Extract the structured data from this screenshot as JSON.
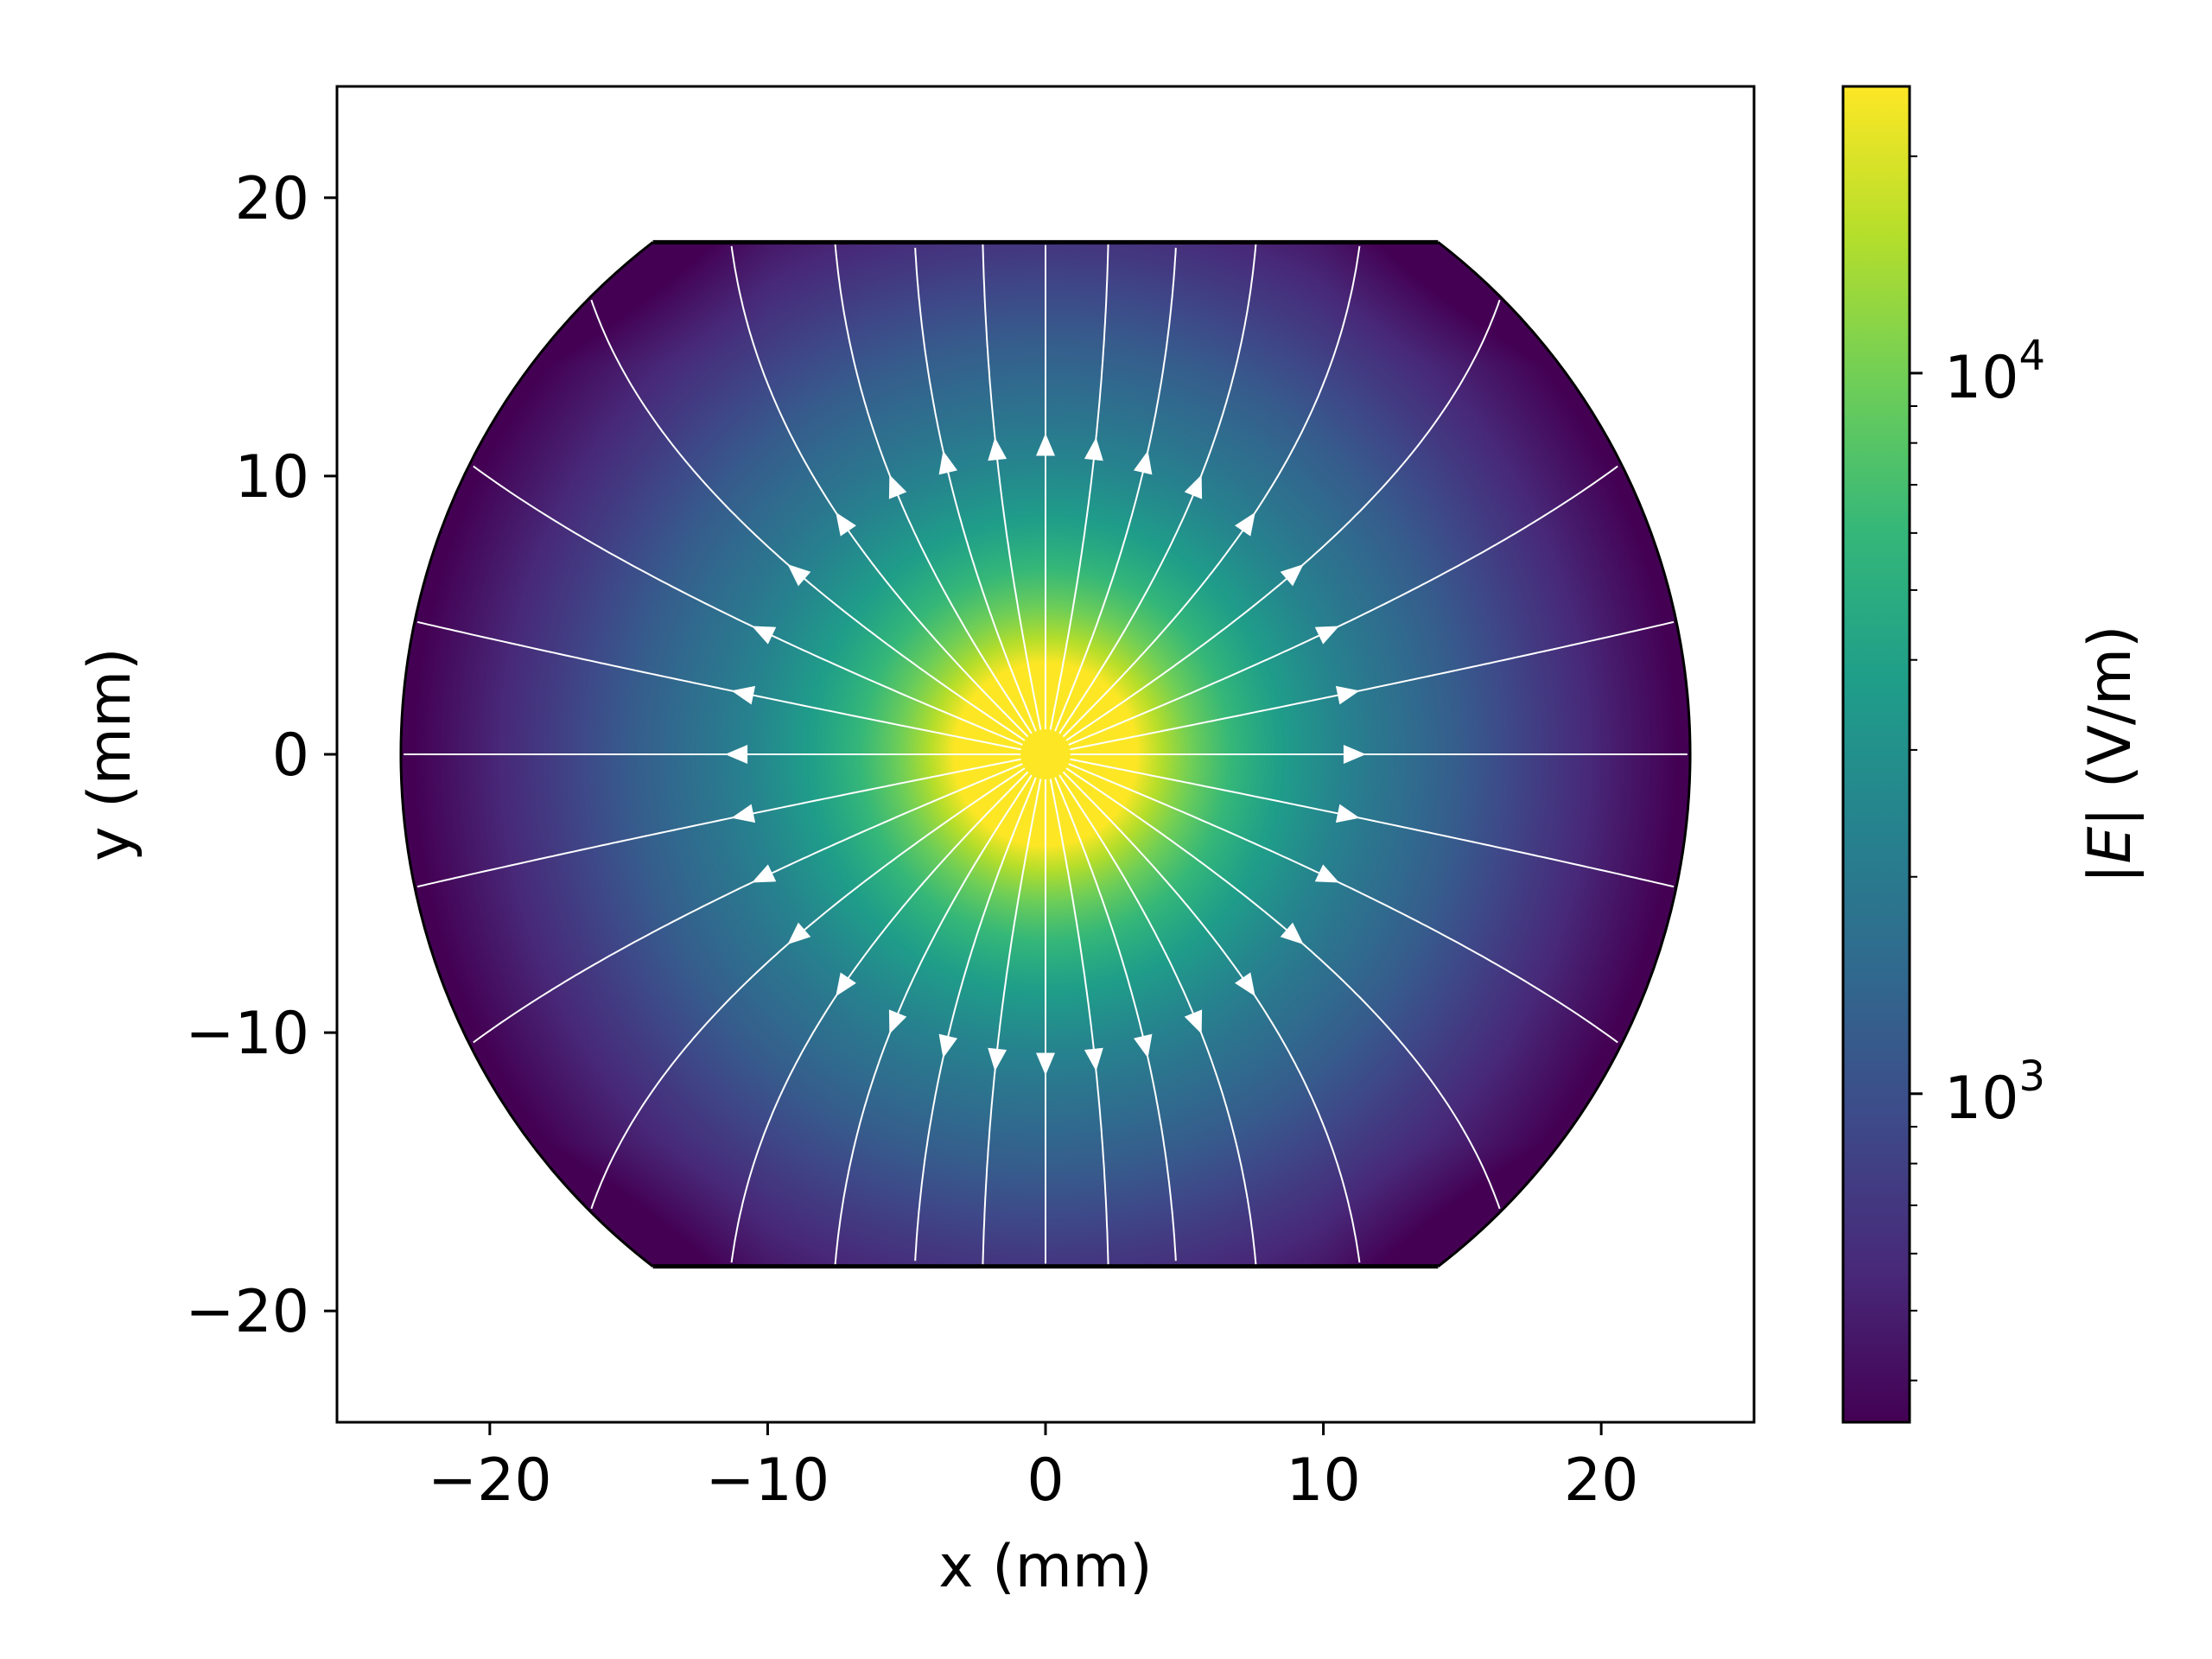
{
  "chart_data": {
    "type": "heatmap",
    "title": "",
    "xlabel": "x (mm)",
    "ylabel": "y (mm)",
    "xlim": [
      -25.5,
      25.5
    ],
    "ylim": [
      -24,
      24
    ],
    "xticks": [
      {
        "value": -20,
        "label": "−20"
      },
      {
        "value": -10,
        "label": "−10"
      },
      {
        "value": 0,
        "label": "0"
      },
      {
        "value": 10,
        "label": "10"
      },
      {
        "value": 20,
        "label": "20"
      }
    ],
    "yticks": [
      {
        "value": -20,
        "label": "−20"
      },
      {
        "value": -10,
        "label": "−10"
      },
      {
        "value": 0,
        "label": "0"
      },
      {
        "value": 10,
        "label": "10"
      },
      {
        "value": 20,
        "label": "20"
      }
    ],
    "grid": false,
    "colormap": "viridis",
    "colorscale": "log",
    "colorbar": {
      "label_prefix": "|",
      "label_italic": "E",
      "label_suffix": "| (V/m)",
      "range": [
        350,
        25000
      ],
      "major_ticks": [
        {
          "value": 1000,
          "base": "10",
          "exp": "3"
        },
        {
          "value": 10000,
          "base": "10",
          "exp": "4"
        }
      ]
    },
    "field": {
      "source": "point charge at origin",
      "domain": "disk of radius 23.2 mm clipped to |y| <= 18.4 mm",
      "disk_radius": 23.2,
      "y_clip": 18.4,
      "center_value": 25000
    },
    "streamlines": {
      "color": "#ffffff",
      "direction": "outward",
      "count": 32
    }
  }
}
